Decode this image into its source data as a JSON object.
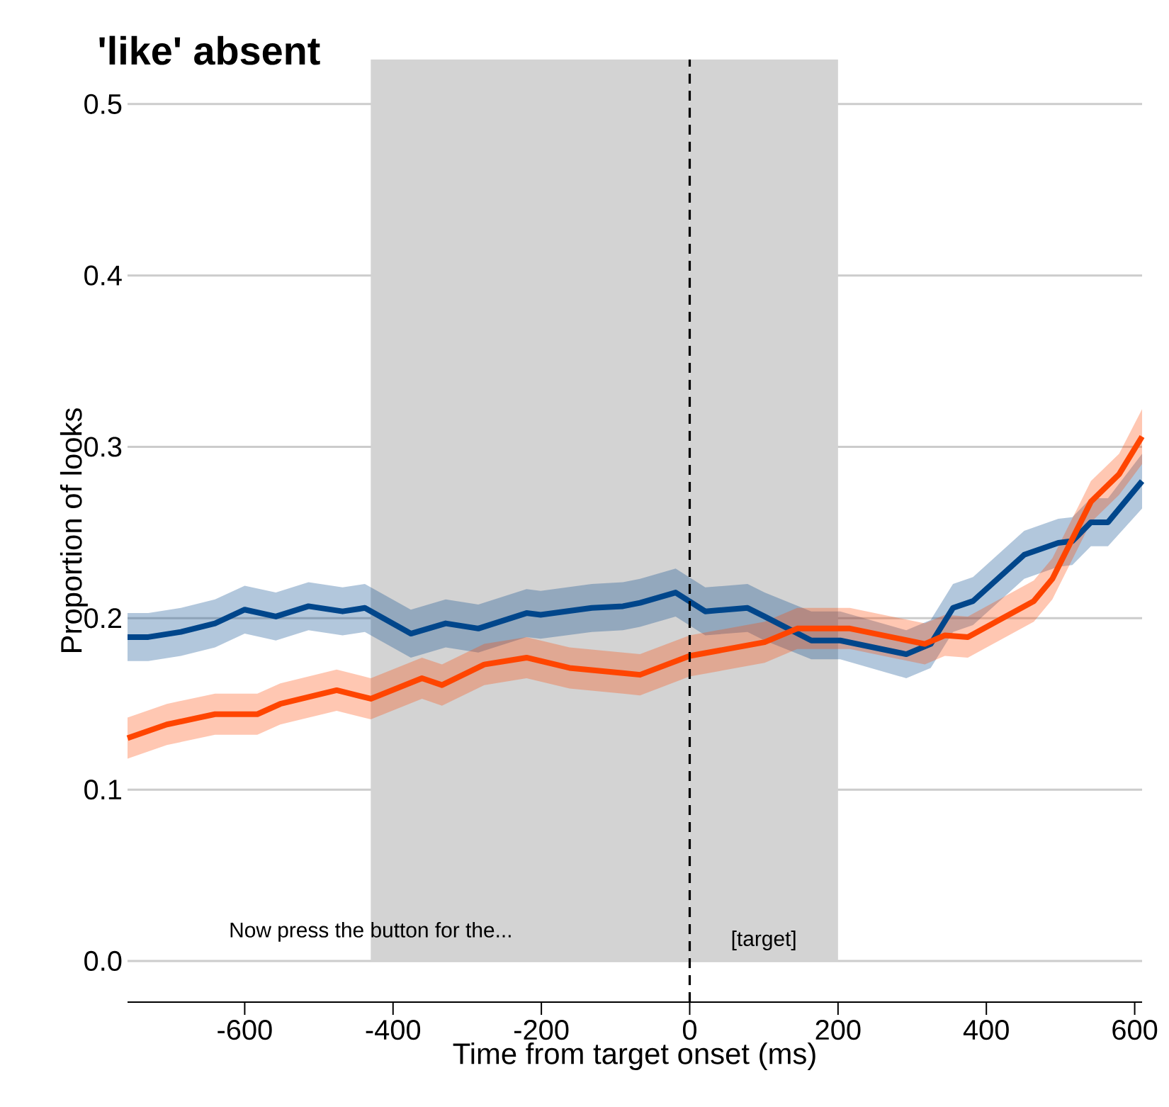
{
  "chart_data": {
    "type": "line",
    "title": "'like' absent",
    "xlabel": "Time from target onset (ms)",
    "ylabel": "Proportion of looks",
    "series": [
      {
        "color": "#00468b",
        "x": [
          -758,
          -730,
          -686,
          -640,
          -600,
          -558,
          -514,
          -468,
          -438,
          -376,
          -329,
          -285,
          -220,
          -201,
          -132,
          -90,
          -67,
          -19,
          21,
          78,
          101,
          164,
          203,
          292,
          325,
          355,
          382,
          451,
          497,
          516,
          541,
          564,
          610
        ],
        "values": [
          0.189,
          0.189,
          0.192,
          0.197,
          0.205,
          0.201,
          0.207,
          0.204,
          0.206,
          0.191,
          0.197,
          0.194,
          0.203,
          0.202,
          0.206,
          0.207,
          0.209,
          0.215,
          0.204,
          0.206,
          0.201,
          0.187,
          0.187,
          0.179,
          0.185,
          0.206,
          0.21,
          0.237,
          0.244,
          0.245,
          0.256,
          0.256,
          0.28
        ],
        "lower": [
          0.175,
          0.175,
          0.178,
          0.183,
          0.191,
          0.187,
          0.193,
          0.19,
          0.192,
          0.177,
          0.183,
          0.18,
          0.189,
          0.188,
          0.192,
          0.193,
          0.195,
          0.201,
          0.19,
          0.192,
          0.187,
          0.176,
          0.176,
          0.165,
          0.171,
          0.192,
          0.196,
          0.223,
          0.23,
          0.231,
          0.242,
          0.242,
          0.264
        ],
        "upper": [
          0.203,
          0.203,
          0.206,
          0.211,
          0.219,
          0.215,
          0.221,
          0.218,
          0.22,
          0.205,
          0.211,
          0.208,
          0.217,
          0.216,
          0.22,
          0.221,
          0.223,
          0.229,
          0.218,
          0.22,
          0.215,
          0.204,
          0.204,
          0.193,
          0.199,
          0.22,
          0.224,
          0.251,
          0.258,
          0.259,
          0.27,
          0.27,
          0.296
        ]
      },
      {
        "color": "#ff4500",
        "x": [
          -758,
          -705,
          -640,
          -583,
          -552,
          -476,
          -430,
          -361,
          -334,
          -277,
          -220,
          -162,
          -90,
          -67,
          0,
          101,
          145,
          216,
          317,
          344,
          375,
          464,
          489,
          541,
          579,
          610
        ],
        "values": [
          0.13,
          0.138,
          0.144,
          0.144,
          0.15,
          0.158,
          0.153,
          0.165,
          0.161,
          0.173,
          0.177,
          0.171,
          0.168,
          0.167,
          0.178,
          0.186,
          0.194,
          0.194,
          0.185,
          0.19,
          0.189,
          0.21,
          0.223,
          0.268,
          0.284,
          0.306
        ],
        "lower": [
          0.118,
          0.126,
          0.132,
          0.132,
          0.138,
          0.146,
          0.141,
          0.153,
          0.149,
          0.161,
          0.165,
          0.159,
          0.156,
          0.155,
          0.166,
          0.174,
          0.182,
          0.182,
          0.173,
          0.178,
          0.177,
          0.198,
          0.211,
          0.256,
          0.272,
          0.29
        ],
        "upper": [
          0.142,
          0.15,
          0.156,
          0.156,
          0.162,
          0.17,
          0.165,
          0.177,
          0.173,
          0.185,
          0.189,
          0.183,
          0.18,
          0.179,
          0.19,
          0.198,
          0.206,
          0.206,
          0.197,
          0.202,
          0.201,
          0.222,
          0.235,
          0.28,
          0.296,
          0.322
        ]
      }
    ],
    "xlim": [
      -758,
      610
    ],
    "ylim": [
      -0.024,
      0.526
    ],
    "xticks": [
      -600,
      -400,
      -200,
      0,
      200,
      400,
      600
    ],
    "yticks": [
      {
        "value": 0,
        "label": "0.0"
      },
      0.1,
      0.2,
      0.3,
      0.4,
      0.5
    ],
    "grid": "y",
    "line_style": "solid",
    "bands": [
      {
        "axis": "x",
        "from": -430,
        "to": 0,
        "color": "#d3d3d3"
      },
      {
        "axis": "x",
        "from": 0,
        "to": 200,
        "color": "#d3d3d3",
        "label": "[target]"
      }
    ],
    "ref_lines": [
      {
        "axis": "x",
        "value": 0,
        "color": "#000000",
        "line_style": "dashed"
      }
    ],
    "annotations": [
      {
        "text": "Now press the button for the...",
        "x": -430,
        "y": 0.017
      }
    ]
  }
}
